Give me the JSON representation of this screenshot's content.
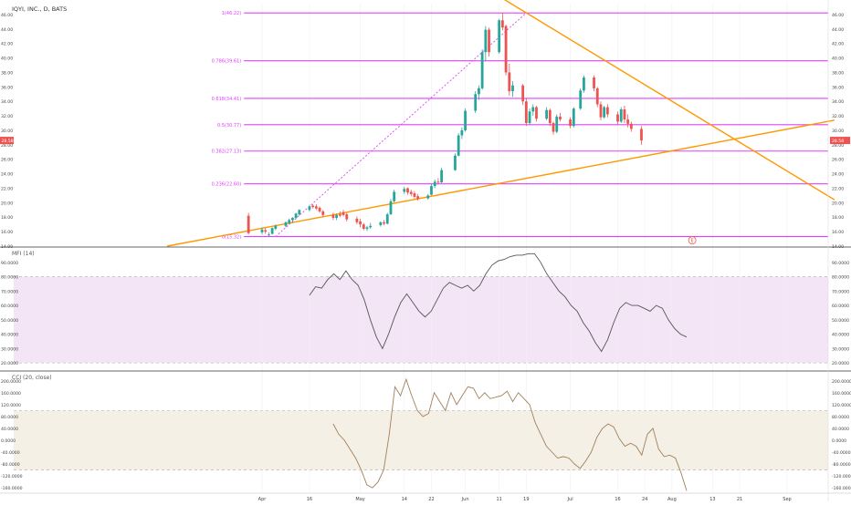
{
  "header": {
    "symbol_title": "IQYI, INC., D, BATS"
  },
  "colors": {
    "up": "#26a69a",
    "down": "#ef5350",
    "fib": "#e040fb",
    "trend": "#ff9800",
    "mfi_band": "#f3e5f5",
    "cci_band": "#f5f0e6",
    "indicator_line": "#555555",
    "cci_line": "#a0805a",
    "price_tag": "#ef5350"
  },
  "chart_data": [
    {
      "type": "candlestick",
      "title": "IQYI, INC., D, BATS",
      "ylim": [
        14,
        47.5
      ],
      "yticks": [
        14,
        16,
        18,
        20,
        22,
        24,
        26,
        28,
        30,
        32,
        34,
        36,
        38,
        40,
        42,
        44,
        46
      ],
      "ytick_labels": [
        "14.00",
        "16.00",
        "18.00",
        "20.00",
        "22.00",
        "24.00",
        "26.00",
        "28.00",
        "30.00",
        "32.00",
        "34.00",
        "36.00",
        "38.00",
        "40.00",
        "42.00",
        "44.00",
        "46.00"
      ],
      "x_ticks": [
        {
          "label": "Apr",
          "date": "2018-04-02"
        },
        {
          "label": "16",
          "date": "2018-04-16"
        },
        {
          "label": "May",
          "date": "2018-05-01"
        },
        {
          "label": "14",
          "date": "2018-05-14"
        },
        {
          "label": "22",
          "date": "2018-05-22"
        },
        {
          "label": "Jun",
          "date": "2018-06-01"
        },
        {
          "label": "11",
          "date": "2018-06-11"
        },
        {
          "label": "19",
          "date": "2018-06-19"
        },
        {
          "label": "Jul",
          "date": "2018-07-02"
        },
        {
          "label": "16",
          "date": "2018-07-16"
        },
        {
          "label": "24",
          "date": "2018-07-24"
        },
        {
          "label": "Aug",
          "date": "2018-08-01"
        },
        {
          "label": "13",
          "date": "2018-08-13"
        },
        {
          "label": "21",
          "date": "2018-08-21"
        },
        {
          "label": "Sep",
          "date": "2018-09-04"
        }
      ],
      "last_price_label": "28.58",
      "fib_levels": [
        {
          "label": "1(46.22)",
          "value": 46.22
        },
        {
          "label": "0.786(39.61)",
          "value": 39.61
        },
        {
          "label": "0.618(34.41)",
          "value": 34.41
        },
        {
          "label": "0.5(30.77)",
          "value": 30.77
        },
        {
          "label": "0.382(27.13)",
          "value": 27.13
        },
        {
          "label": "0.236(22.60)",
          "value": 22.6
        },
        {
          "label": "0(15.32)",
          "value": 15.32
        }
      ],
      "trendlines": [
        {
          "from": [
            "2018-03-05",
            14.0
          ],
          "to": [
            "2018-09-18",
            31.4
          ]
        },
        {
          "from": [
            "2018-06-11",
            48.5
          ],
          "to": [
            "2018-09-18",
            20.4
          ]
        }
      ],
      "dotted_line": {
        "from": [
          "2018-04-06",
          15.32
        ],
        "to": [
          "2018-06-19",
          46.22
        ]
      },
      "event_marker": {
        "label": "E",
        "date": "2018-08-07",
        "value": 14.8
      },
      "candles": [
        {
          "date": "2018-03-29",
          "open": 18.2,
          "high": 18.6,
          "low": 15.6,
          "close": 15.8
        },
        {
          "date": "2018-04-02",
          "open": 15.9,
          "high": 16.6,
          "low": 15.6,
          "close": 16.3
        },
        {
          "date": "2018-04-03",
          "open": 16.2,
          "high": 16.5,
          "low": 15.7,
          "close": 16.0
        },
        {
          "date": "2018-04-04",
          "open": 15.6,
          "high": 15.9,
          "low": 15.3,
          "close": 15.6
        },
        {
          "date": "2018-04-05",
          "open": 15.7,
          "high": 16.6,
          "low": 15.6,
          "close": 16.5
        },
        {
          "date": "2018-04-06",
          "open": 16.4,
          "high": 17.0,
          "low": 16.2,
          "close": 16.8
        },
        {
          "date": "2018-04-09",
          "open": 16.8,
          "high": 17.4,
          "low": 16.6,
          "close": 17.3
        },
        {
          "date": "2018-04-10",
          "open": 17.2,
          "high": 17.8,
          "low": 17.0,
          "close": 17.6
        },
        {
          "date": "2018-04-11",
          "open": 17.6,
          "high": 18.0,
          "low": 17.2,
          "close": 17.9
        },
        {
          "date": "2018-04-12",
          "open": 17.9,
          "high": 18.6,
          "low": 17.7,
          "close": 18.5
        },
        {
          "date": "2018-04-13",
          "open": 18.4,
          "high": 19.1,
          "low": 18.2,
          "close": 19.0
        },
        {
          "date": "2018-04-16",
          "open": 19.0,
          "high": 19.7,
          "low": 18.8,
          "close": 19.5
        },
        {
          "date": "2018-04-17",
          "open": 19.6,
          "high": 19.8,
          "low": 19.2,
          "close": 19.4
        },
        {
          "date": "2018-04-18",
          "open": 19.5,
          "high": 19.8,
          "low": 19.0,
          "close": 19.2
        },
        {
          "date": "2018-04-19",
          "open": 19.3,
          "high": 19.5,
          "low": 18.6,
          "close": 18.8
        },
        {
          "date": "2018-04-20",
          "open": 18.8,
          "high": 19.0,
          "low": 18.0,
          "close": 18.3
        },
        {
          "date": "2018-04-23",
          "open": 18.3,
          "high": 18.6,
          "low": 17.6,
          "close": 17.9
        },
        {
          "date": "2018-04-24",
          "open": 17.9,
          "high": 18.5,
          "low": 17.6,
          "close": 18.3
        },
        {
          "date": "2018-04-25",
          "open": 18.4,
          "high": 18.8,
          "low": 18.0,
          "close": 18.2
        },
        {
          "date": "2018-04-26",
          "open": 18.7,
          "high": 19.0,
          "low": 18.1,
          "close": 18.3
        },
        {
          "date": "2018-04-27",
          "open": 18.4,
          "high": 18.6,
          "low": 17.4,
          "close": 17.7
        },
        {
          "date": "2018-04-30",
          "open": 17.8,
          "high": 18.1,
          "low": 17.0,
          "close": 17.3
        },
        {
          "date": "2018-05-01",
          "open": 17.4,
          "high": 17.8,
          "low": 16.6,
          "close": 17.0
        },
        {
          "date": "2018-05-02",
          "open": 17.0,
          "high": 17.2,
          "low": 16.2,
          "close": 16.4
        },
        {
          "date": "2018-05-03",
          "open": 16.4,
          "high": 16.8,
          "low": 16.1,
          "close": 16.6
        },
        {
          "date": "2018-05-04",
          "open": 16.6,
          "high": 17.2,
          "low": 16.4,
          "close": 16.8
        },
        {
          "date": "2018-05-07",
          "open": 16.9,
          "high": 17.4,
          "low": 16.7,
          "close": 17.3
        },
        {
          "date": "2018-05-08",
          "open": 17.3,
          "high": 17.6,
          "low": 16.9,
          "close": 17.1
        },
        {
          "date": "2018-05-09",
          "open": 17.1,
          "high": 18.6,
          "low": 17.0,
          "close": 18.4
        },
        {
          "date": "2018-05-10",
          "open": 18.4,
          "high": 20.5,
          "low": 18.3,
          "close": 20.2
        },
        {
          "date": "2018-05-11",
          "open": 20.2,
          "high": 21.8,
          "low": 20.0,
          "close": 21.5
        },
        {
          "date": "2018-05-14",
          "open": 21.5,
          "high": 22.2,
          "low": 21.2,
          "close": 21.9
        },
        {
          "date": "2018-05-15",
          "open": 22.0,
          "high": 22.1,
          "low": 21.1,
          "close": 21.4
        },
        {
          "date": "2018-05-16",
          "open": 21.5,
          "high": 21.8,
          "low": 20.9,
          "close": 21.2
        },
        {
          "date": "2018-05-17",
          "open": 21.3,
          "high": 21.6,
          "low": 20.6,
          "close": 20.8
        },
        {
          "date": "2018-05-18",
          "open": 20.9,
          "high": 21.2,
          "low": 20.3,
          "close": 20.5
        },
        {
          "date": "2018-05-21",
          "open": 20.6,
          "high": 21.2,
          "low": 20.4,
          "close": 21.0
        },
        {
          "date": "2018-05-22",
          "open": 21.1,
          "high": 22.6,
          "low": 21.0,
          "close": 22.3
        },
        {
          "date": "2018-05-23",
          "open": 22.3,
          "high": 23.2,
          "low": 22.0,
          "close": 22.9
        },
        {
          "date": "2018-05-24",
          "open": 22.9,
          "high": 23.4,
          "low": 22.5,
          "close": 22.8
        },
        {
          "date": "2018-05-25",
          "open": 22.8,
          "high": 24.8,
          "low": 22.7,
          "close": 24.5
        },
        {
          "date": "2018-05-29",
          "open": 24.5,
          "high": 26.8,
          "low": 24.4,
          "close": 26.5
        },
        {
          "date": "2018-05-30",
          "open": 26.5,
          "high": 29.6,
          "low": 26.4,
          "close": 29.3
        },
        {
          "date": "2018-05-31",
          "open": 29.3,
          "high": 30.4,
          "low": 28.8,
          "close": 30.0
        },
        {
          "date": "2018-06-01",
          "open": 30.0,
          "high": 33.0,
          "low": 29.8,
          "close": 32.7
        },
        {
          "date": "2018-06-04",
          "open": 32.7,
          "high": 35.4,
          "low": 32.4,
          "close": 35.0
        },
        {
          "date": "2018-06-05",
          "open": 35.0,
          "high": 36.2,
          "low": 34.2,
          "close": 35.8
        },
        {
          "date": "2018-06-06",
          "open": 35.8,
          "high": 41.2,
          "low": 35.6,
          "close": 40.8
        },
        {
          "date": "2018-06-07",
          "open": 40.8,
          "high": 44.4,
          "low": 39.5,
          "close": 43.9
        },
        {
          "date": "2018-06-08",
          "open": 43.9,
          "high": 44.2,
          "low": 40.2,
          "close": 40.8
        },
        {
          "date": "2018-06-11",
          "open": 40.8,
          "high": 45.4,
          "low": 40.6,
          "close": 45.2
        },
        {
          "date": "2018-06-12",
          "open": 45.2,
          "high": 46.2,
          "low": 43.8,
          "close": 44.2
        },
        {
          "date": "2018-06-13",
          "open": 44.4,
          "high": 44.6,
          "low": 37.6,
          "close": 38.0
        },
        {
          "date": "2018-06-14",
          "open": 38.0,
          "high": 39.2,
          "low": 34.8,
          "close": 35.4
        },
        {
          "date": "2018-06-15",
          "open": 35.4,
          "high": 36.8,
          "low": 34.6,
          "close": 36.2
        },
        {
          "date": "2018-06-18",
          "open": 36.2,
          "high": 36.4,
          "low": 33.5,
          "close": 34.0
        },
        {
          "date": "2018-06-19",
          "open": 34.0,
          "high": 34.4,
          "low": 30.6,
          "close": 31.0
        },
        {
          "date": "2018-06-20",
          "open": 31.0,
          "high": 33.0,
          "low": 30.8,
          "close": 32.6
        },
        {
          "date": "2018-06-21",
          "open": 32.6,
          "high": 33.6,
          "low": 32.0,
          "close": 33.2
        },
        {
          "date": "2018-06-22",
          "open": 33.2,
          "high": 33.4,
          "low": 31.2,
          "close": 31.6
        },
        {
          "date": "2018-06-25",
          "open": 31.6,
          "high": 33.2,
          "low": 31.4,
          "close": 32.8
        },
        {
          "date": "2018-06-26",
          "open": 32.8,
          "high": 33.0,
          "low": 30.6,
          "close": 31.0
        },
        {
          "date": "2018-06-27",
          "open": 31.0,
          "high": 31.2,
          "low": 29.4,
          "close": 29.8
        },
        {
          "date": "2018-06-28",
          "open": 29.8,
          "high": 32.2,
          "low": 29.6,
          "close": 31.9
        },
        {
          "date": "2018-06-29",
          "open": 31.9,
          "high": 32.4,
          "low": 31.2,
          "close": 31.5
        },
        {
          "date": "2018-07-02",
          "open": 31.5,
          "high": 31.8,
          "low": 30.3,
          "close": 30.6
        },
        {
          "date": "2018-07-03",
          "open": 30.6,
          "high": 33.2,
          "low": 30.4,
          "close": 33.0
        },
        {
          "date": "2018-07-05",
          "open": 33.0,
          "high": 35.8,
          "low": 32.8,
          "close": 35.5
        },
        {
          "date": "2018-07-06",
          "open": 35.5,
          "high": 37.6,
          "low": 35.2,
          "close": 37.3
        },
        {
          "date": "2018-07-09",
          "open": 37.3,
          "high": 37.6,
          "low": 35.4,
          "close": 35.8
        },
        {
          "date": "2018-07-10",
          "open": 35.8,
          "high": 36.0,
          "low": 33.2,
          "close": 33.6
        },
        {
          "date": "2018-07-11",
          "open": 33.6,
          "high": 34.0,
          "low": 31.4,
          "close": 31.8
        },
        {
          "date": "2018-07-12",
          "open": 31.8,
          "high": 33.4,
          "low": 31.6,
          "close": 33.2
        },
        {
          "date": "2018-07-13",
          "open": 33.2,
          "high": 33.6,
          "low": 31.8,
          "close": 32.2
        },
        {
          "date": "2018-07-16",
          "open": 32.2,
          "high": 32.6,
          "low": 30.8,
          "close": 31.2
        },
        {
          "date": "2018-07-17",
          "open": 31.2,
          "high": 33.2,
          "low": 31.0,
          "close": 32.9
        },
        {
          "date": "2018-07-18",
          "open": 32.9,
          "high": 33.4,
          "low": 31.0,
          "close": 31.5
        },
        {
          "date": "2018-07-19",
          "open": 31.5,
          "high": 32.2,
          "low": 30.4,
          "close": 30.9
        },
        {
          "date": "2018-07-20",
          "open": 30.9,
          "high": 31.2,
          "low": 29.8,
          "close": 30.2
        },
        {
          "date": "2018-07-23",
          "open": 30.2,
          "high": 30.6,
          "low": 28.0,
          "close": 28.6
        }
      ]
    },
    {
      "type": "line",
      "title": "MFI (14)",
      "ylim": [
        15,
        100
      ],
      "yticks": [
        20,
        30,
        40,
        50,
        60,
        70,
        80,
        90
      ],
      "ytick_labels": [
        "20.0000",
        "30.0000",
        "40.0000",
        "50.0000",
        "60.0000",
        "70.0000",
        "80.0000",
        "90.0000"
      ],
      "band": [
        20,
        80
      ],
      "values": [
        67,
        73,
        72,
        78,
        82,
        78,
        84,
        78,
        74,
        64,
        50,
        38,
        30,
        40,
        52,
        62,
        68,
        62,
        56,
        52,
        56,
        64,
        72,
        76,
        74,
        72,
        74,
        70,
        74,
        82,
        88,
        91,
        92,
        94,
        95,
        95,
        96,
        96,
        90,
        82,
        76,
        70,
        66,
        60,
        56,
        48,
        42,
        34,
        28,
        36,
        48,
        58,
        62,
        60,
        60,
        58,
        56,
        60,
        58,
        50,
        44,
        40,
        38
      ]
    },
    {
      "type": "line",
      "title": "CCI (20, close)",
      "ylim": [
        -175,
        230
      ],
      "yticks": [
        -160,
        -120,
        -80,
        -40,
        0,
        40,
        80,
        120,
        160,
        200
      ],
      "ytick_labels": [
        "-160.0000",
        "-120.0000",
        "-80.0000",
        "-40.0000",
        "0.0000",
        "40.0000",
        "80.0000",
        "120.0000",
        "160.0000",
        "200.0000"
      ],
      "band": [
        -100,
        100
      ],
      "values": [
        55,
        20,
        0,
        -30,
        -60,
        -100,
        -150,
        -160,
        -140,
        -100,
        20,
        180,
        150,
        205,
        150,
        100,
        80,
        90,
        160,
        130,
        100,
        160,
        120,
        150,
        180,
        175,
        140,
        160,
        140,
        145,
        150,
        165,
        130,
        160,
        140,
        120,
        60,
        20,
        -20,
        -40,
        -60,
        -55,
        -60,
        -80,
        -95,
        -70,
        -40,
        10,
        40,
        55,
        45,
        5,
        -20,
        -10,
        -20,
        -50,
        20,
        40,
        -30,
        -55,
        -50,
        -60,
        -110,
        -170
      ]
    }
  ]
}
